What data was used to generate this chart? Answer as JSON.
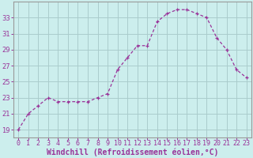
{
  "x": [
    0,
    1,
    2,
    3,
    4,
    5,
    6,
    7,
    8,
    9,
    10,
    11,
    12,
    13,
    14,
    15,
    16,
    17,
    18,
    19,
    20,
    21,
    22,
    23
  ],
  "y": [
    19,
    21,
    22,
    23,
    22.5,
    22.5,
    22.5,
    22.5,
    23,
    23.5,
    26.5,
    28,
    29.5,
    29.5,
    32.5,
    33.5,
    34,
    34,
    33.5,
    33,
    30.5,
    29,
    26.5,
    25.5
  ],
  "line_color": "#993399",
  "marker": "+",
  "bg_color": "#cceeed",
  "grid_color": "#aacccc",
  "axis_label_color": "#993399",
  "tick_color": "#993399",
  "spine_color": "#999999",
  "xlabel": "Windchill (Refroidissement éolien,°C)",
  "ylabel": "",
  "xlim": [
    -0.5,
    23.5
  ],
  "ylim": [
    18,
    35
  ],
  "yticks": [
    19,
    21,
    23,
    25,
    27,
    29,
    31,
    33
  ],
  "xticks": [
    0,
    1,
    2,
    3,
    4,
    5,
    6,
    7,
    8,
    9,
    10,
    11,
    12,
    13,
    14,
    15,
    16,
    17,
    18,
    19,
    20,
    21,
    22,
    23
  ],
  "label_fontsize": 7,
  "tick_fontsize": 6
}
